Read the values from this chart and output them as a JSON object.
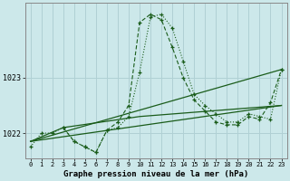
{
  "background_color": "#cce8ea",
  "grid_color": "#b0d0d4",
  "line_color": "#1a5c1a",
  "xlabel": "Graphe pression niveau de la mer (hPa)",
  "x_ticks": [
    0,
    1,
    2,
    3,
    4,
    5,
    6,
    7,
    8,
    9,
    10,
    11,
    12,
    13,
    14,
    15,
    16,
    17,
    18,
    19,
    20,
    21,
    22,
    23
  ],
  "ylim": [
    1021.55,
    1024.35
  ],
  "ytick_vals": [
    1022,
    1023
  ],
  "lines": [
    {
      "x": [
        0,
        1,
        2,
        3,
        4,
        5,
        6,
        7,
        8,
        9,
        10,
        11,
        12,
        13,
        14,
        15,
        16,
        17,
        18,
        19,
        20,
        21,
        22,
        23
      ],
      "y": [
        1021.75,
        1022.0,
        1022.0,
        1022.1,
        1021.85,
        1021.75,
        1021.65,
        1022.05,
        1022.1,
        1022.3,
        1023.1,
        1024.1,
        1024.15,
        1023.9,
        1023.3,
        1022.7,
        1022.5,
        1022.35,
        1022.2,
        1022.2,
        1022.35,
        1022.3,
        1022.25,
        1023.15
      ],
      "style": "dotted_marker",
      "marker": "+"
    },
    {
      "x": [
        0,
        23
      ],
      "y": [
        1021.85,
        1023.15
      ],
      "style": "solid",
      "marker": null
    },
    {
      "x": [
        0,
        23
      ],
      "y": [
        1021.85,
        1022.5
      ],
      "style": "solid",
      "marker": null
    },
    {
      "x": [
        0,
        3,
        10,
        23
      ],
      "y": [
        1021.85,
        1022.1,
        1022.3,
        1022.5
      ],
      "style": "solid",
      "marker": null
    },
    {
      "x": [
        3,
        4,
        5,
        6,
        7,
        8,
        9,
        10,
        11,
        12,
        13,
        14,
        15,
        16,
        17,
        18,
        19,
        20,
        21,
        22,
        23
      ],
      "y": [
        1022.1,
        1021.85,
        1021.75,
        1021.65,
        1022.05,
        1022.2,
        1022.5,
        1024.0,
        1024.15,
        1024.05,
        1023.55,
        1023.0,
        1022.6,
        1022.4,
        1022.2,
        1022.15,
        1022.15,
        1022.3,
        1022.25,
        1022.55,
        1023.15
      ],
      "style": "dashed_marker",
      "marker": "+"
    }
  ]
}
